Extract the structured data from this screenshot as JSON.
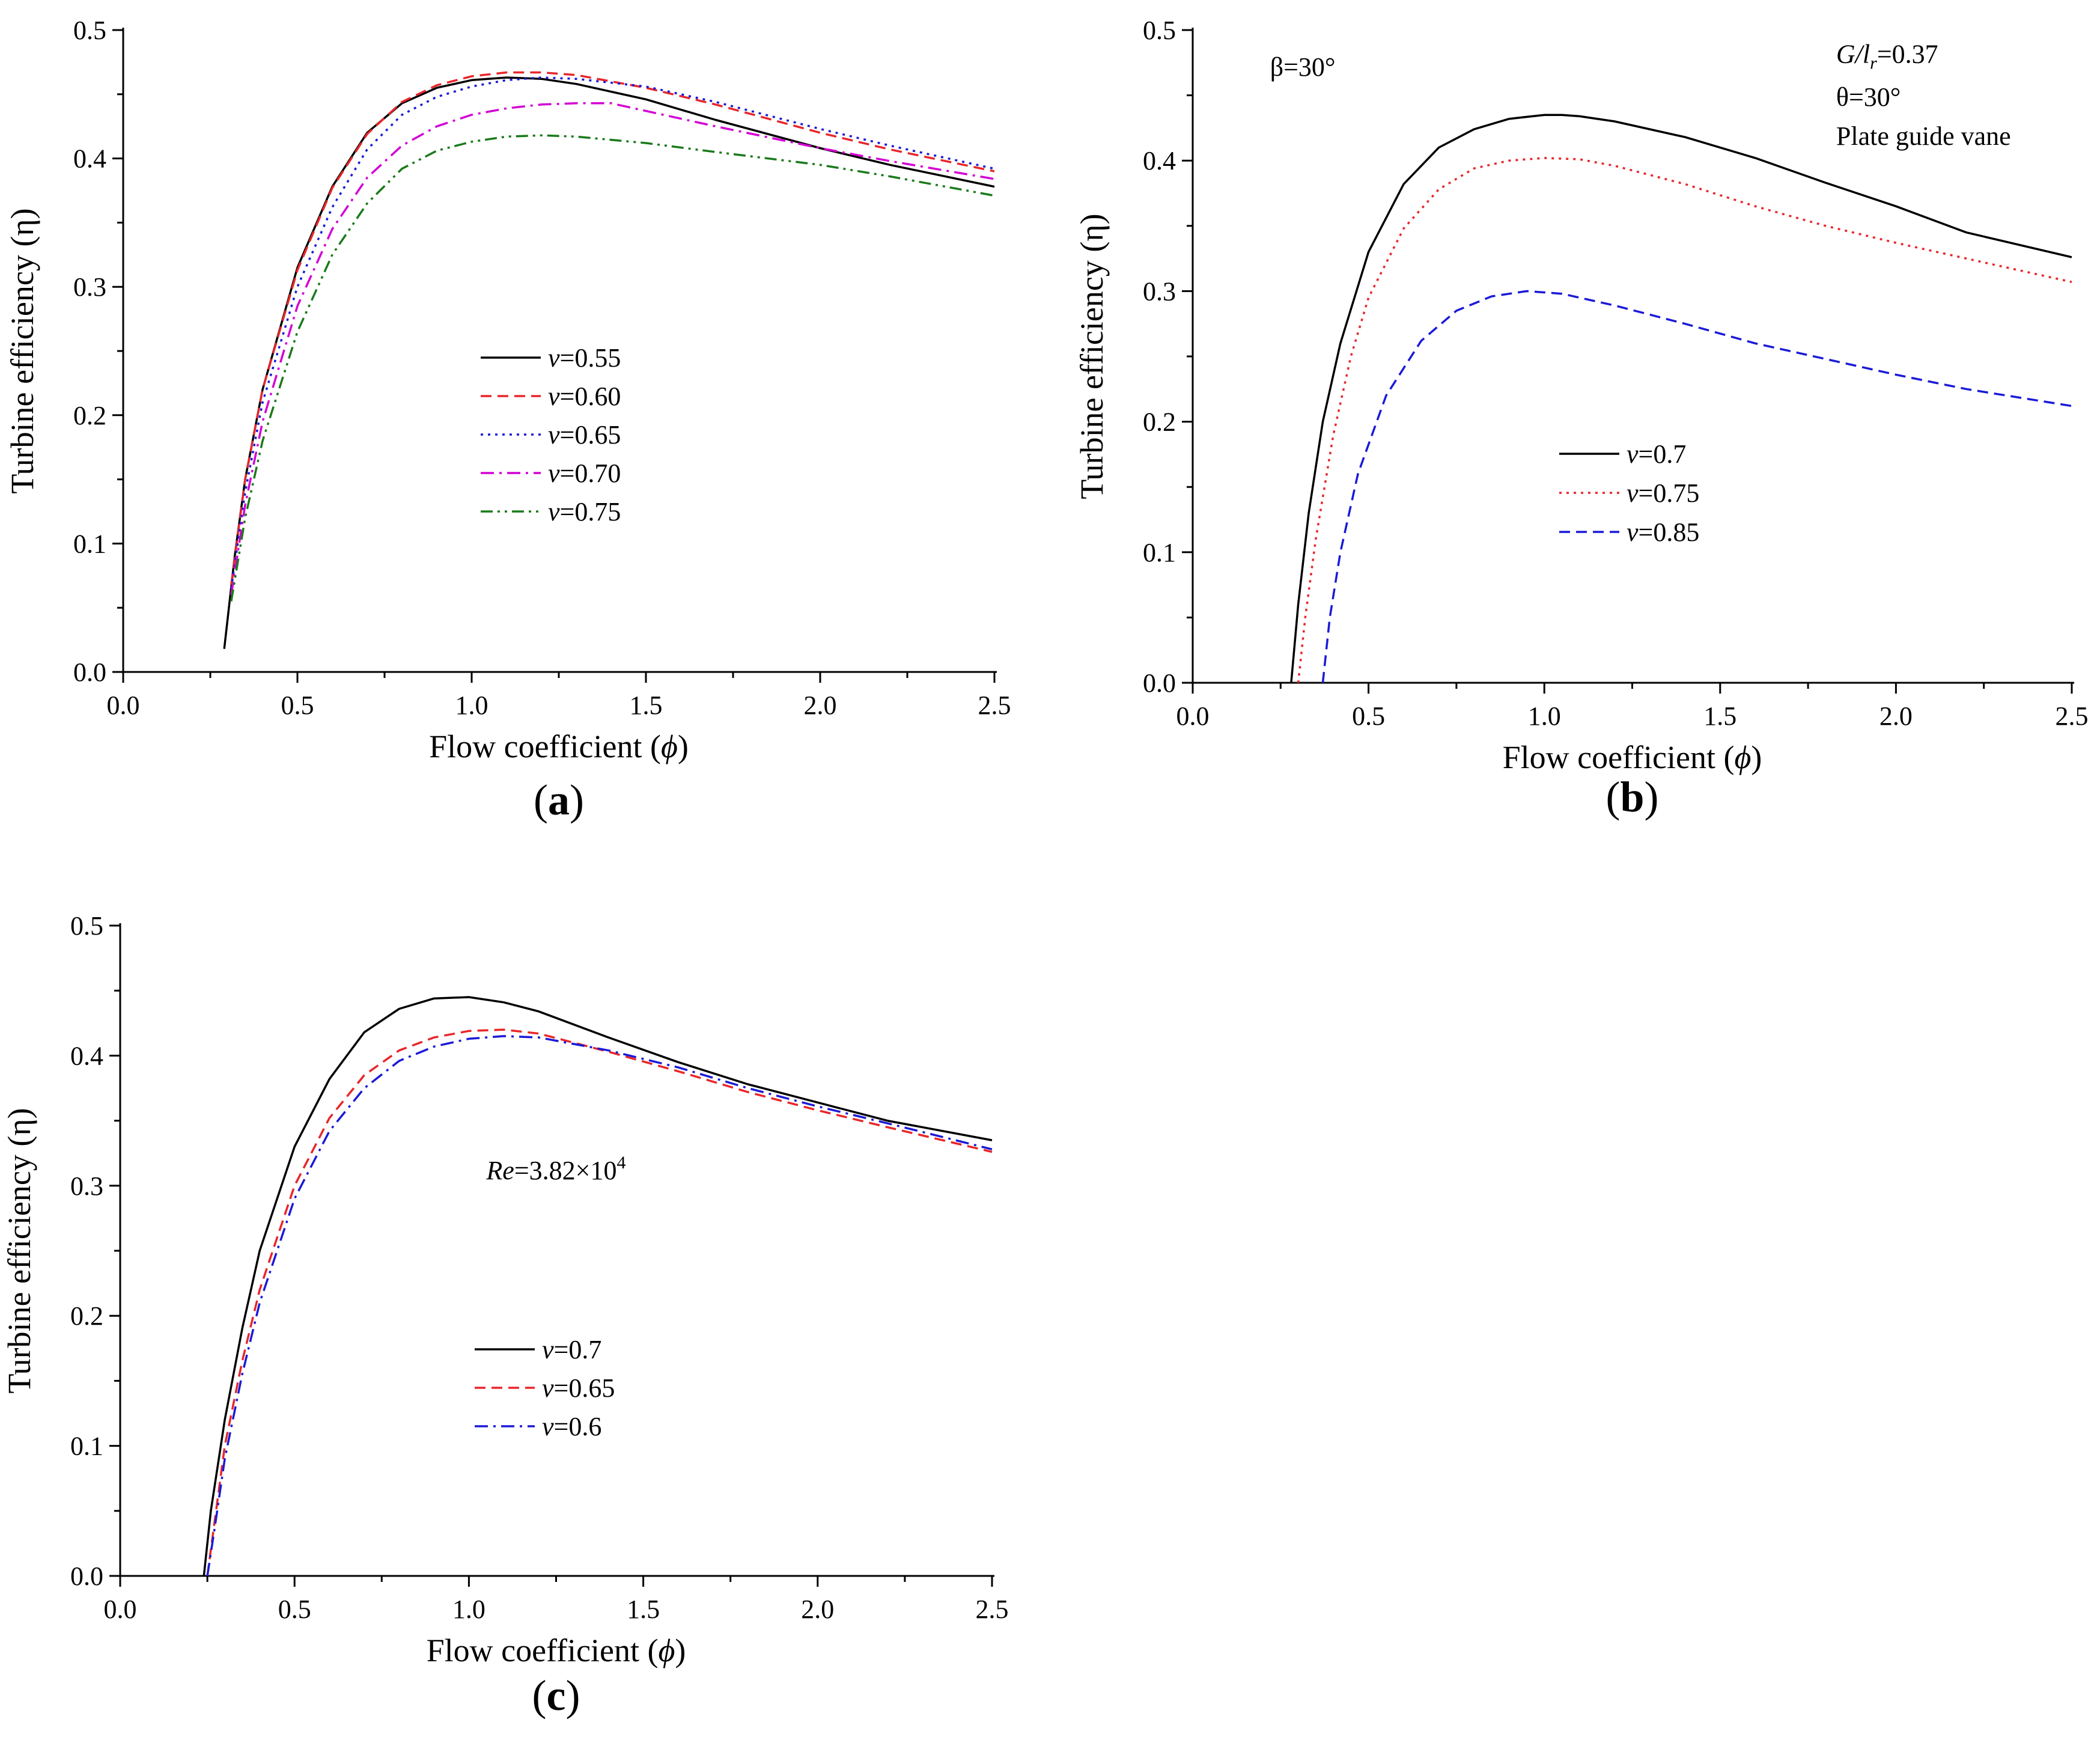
{
  "chart_data": [
    {
      "id": "a",
      "type": "line",
      "panel_label": "a",
      "xlabel": "Flow coefficient (ϕ)",
      "xlabel_parts": {
        "text": "Flow coefficient (",
        "symbol": "ϕ",
        "close": ")"
      },
      "ylabel": "Turbine efficiency (η)",
      "xlim": [
        0,
        2.5
      ],
      "ylim": [
        0,
        0.5
      ],
      "xticks": [
        "0.0",
        "0.5",
        "1.0",
        "1.5",
        "2.0",
        "2.5"
      ],
      "yticks": [
        "0.0",
        "0.1",
        "0.2",
        "0.3",
        "0.4",
        "0.5"
      ],
      "annotations": [],
      "legend_position": "center",
      "series": [
        {
          "name": "v=0.55",
          "symbol": "v",
          "value_label": "=0.55",
          "color": "#000000",
          "dash": "solid",
          "x": [
            0.29,
            0.32,
            0.35,
            0.4,
            0.5,
            0.6,
            0.7,
            0.8,
            0.9,
            1.0,
            1.1,
            1.2,
            1.3,
            1.5,
            1.7,
            2.0,
            2.2,
            2.5
          ],
          "y": [
            0.018,
            0.09,
            0.15,
            0.22,
            0.315,
            0.378,
            0.42,
            0.443,
            0.455,
            0.461,
            0.463,
            0.462,
            0.458,
            0.446,
            0.43,
            0.408,
            0.395,
            0.378
          ]
        },
        {
          "name": "v=0.60",
          "symbol": "v",
          "value_label": "=0.60",
          "color": "#e8262a",
          "dash": "dashed",
          "x": [
            0.31,
            0.35,
            0.4,
            0.5,
            0.6,
            0.7,
            0.8,
            0.9,
            1.0,
            1.1,
            1.2,
            1.3,
            1.5,
            1.7,
            2.0,
            2.2,
            2.5
          ],
          "y": [
            0.068,
            0.15,
            0.22,
            0.313,
            0.377,
            0.419,
            0.444,
            0.457,
            0.464,
            0.467,
            0.467,
            0.465,
            0.455,
            0.442,
            0.42,
            0.407,
            0.39
          ]
        },
        {
          "name": "v=0.65",
          "symbol": "v",
          "value_label": "=0.65",
          "color": "#1a1ad8",
          "dash": "dotted",
          "x": [
            0.31,
            0.35,
            0.4,
            0.5,
            0.6,
            0.7,
            0.8,
            0.9,
            1.0,
            1.1,
            1.2,
            1.3,
            1.5,
            1.7,
            2.0,
            2.2,
            2.5
          ],
          "y": [
            0.065,
            0.14,
            0.21,
            0.3,
            0.362,
            0.407,
            0.434,
            0.448,
            0.456,
            0.461,
            0.463,
            0.462,
            0.456,
            0.444,
            0.423,
            0.41,
            0.392
          ]
        },
        {
          "name": "v=0.70",
          "symbol": "v",
          "value_label": "=0.70",
          "color": "#d400d4",
          "dash": "dashdot",
          "x": [
            0.31,
            0.35,
            0.4,
            0.5,
            0.6,
            0.7,
            0.8,
            0.9,
            1.0,
            1.1,
            1.2,
            1.3,
            1.4,
            1.5,
            1.7,
            2.0,
            2.2,
            2.5
          ],
          "y": [
            0.06,
            0.13,
            0.195,
            0.285,
            0.345,
            0.385,
            0.41,
            0.425,
            0.434,
            0.439,
            0.442,
            0.443,
            0.443,
            0.437,
            0.425,
            0.408,
            0.398,
            0.384
          ]
        },
        {
          "name": "v=0.75",
          "symbol": "v",
          "value_label": "=0.75",
          "color": "#1a7a1a",
          "dash": "dashdotdot",
          "x": [
            0.31,
            0.35,
            0.4,
            0.5,
            0.6,
            0.7,
            0.8,
            0.9,
            1.0,
            1.1,
            1.2,
            1.3,
            1.5,
            1.7,
            2.0,
            2.2,
            2.5
          ],
          "y": [
            0.055,
            0.12,
            0.18,
            0.265,
            0.325,
            0.365,
            0.392,
            0.406,
            0.413,
            0.417,
            0.418,
            0.417,
            0.412,
            0.405,
            0.395,
            0.386,
            0.371
          ]
        }
      ]
    },
    {
      "id": "b",
      "type": "line",
      "panel_label": "b",
      "xlabel": "Flow coefficient (ϕ)",
      "xlabel_parts": {
        "text": "Flow coefficient (",
        "symbol": "ϕ",
        "close": ")"
      },
      "ylabel": "Turbine efficiency (η)",
      "xlim": [
        0,
        2.5
      ],
      "ylim": [
        0,
        0.5
      ],
      "xticks": [
        "0.0",
        "0.5",
        "1.0",
        "1.5",
        "2.0",
        "2.5"
      ],
      "yticks": [
        "0.0",
        "0.1",
        "0.2",
        "0.3",
        "0.4",
        "0.5"
      ],
      "annotations": [
        {
          "text": "β=30°",
          "x": 0.22,
          "y": 0.465,
          "anchor": "start"
        },
        {
          "text": "G/lr=0.37",
          "x": 1.83,
          "y": 0.475,
          "anchor": "start",
          "rich": "G-over-lr"
        },
        {
          "text": "θ=30°",
          "x": 1.83,
          "y": 0.442,
          "anchor": "start"
        },
        {
          "text": "Plate guide vane",
          "x": 1.83,
          "y": 0.412,
          "anchor": "start"
        }
      ],
      "legend_position": "center",
      "series": [
        {
          "name": "v=0.7",
          "symbol": "v",
          "value_label": "=0.7",
          "color": "#000000",
          "dash": "solid",
          "x": [
            0.28,
            0.3,
            0.33,
            0.37,
            0.42,
            0.5,
            0.6,
            0.7,
            0.8,
            0.9,
            1.0,
            1.05,
            1.1,
            1.2,
            1.4,
            1.6,
            1.8,
            2.0,
            2.2,
            2.5
          ],
          "y": [
            0.0,
            0.06,
            0.13,
            0.2,
            0.26,
            0.33,
            0.382,
            0.41,
            0.424,
            0.432,
            0.435,
            0.435,
            0.434,
            0.43,
            0.418,
            0.402,
            0.383,
            0.365,
            0.345,
            0.326
          ]
        },
        {
          "name": "v=0.75",
          "symbol": "v",
          "value_label": "=0.75",
          "color": "#e8262a",
          "dash": "dotted",
          "x": [
            0.3,
            0.32,
            0.35,
            0.4,
            0.45,
            0.5,
            0.6,
            0.7,
            0.8,
            0.9,
            1.0,
            1.1,
            1.2,
            1.4,
            1.6,
            1.8,
            2.0,
            2.2,
            2.5
          ],
          "y": [
            0.0,
            0.05,
            0.11,
            0.19,
            0.25,
            0.295,
            0.348,
            0.378,
            0.394,
            0.4,
            0.402,
            0.401,
            0.396,
            0.382,
            0.365,
            0.35,
            0.337,
            0.325,
            0.307
          ]
        },
        {
          "name": "v=0.85",
          "symbol": "v",
          "value_label": "=0.85",
          "color": "#1a1ad8",
          "dash": "dashed",
          "x": [
            0.37,
            0.39,
            0.42,
            0.47,
            0.55,
            0.65,
            0.75,
            0.85,
            0.95,
            1.05,
            1.2,
            1.4,
            1.6,
            1.8,
            2.0,
            2.2,
            2.5
          ],
          "y": [
            0.0,
            0.05,
            0.1,
            0.16,
            0.22,
            0.262,
            0.285,
            0.296,
            0.3,
            0.298,
            0.289,
            0.275,
            0.26,
            0.248,
            0.236,
            0.225,
            0.212
          ]
        }
      ]
    },
    {
      "id": "c",
      "type": "line",
      "panel_label": "c",
      "xlabel": "Flow coefficient (ϕ)",
      "xlabel_parts": {
        "text": "Flow coefficient (",
        "symbol": "ϕ",
        "close": ")"
      },
      "ylabel": "Turbine efficiency (η)",
      "xlim": [
        0,
        2.5
      ],
      "ylim": [
        0,
        0.5
      ],
      "xticks": [
        "0.0",
        "0.5",
        "1.0",
        "1.5",
        "2.0",
        "2.5"
      ],
      "yticks": [
        "0.0",
        "0.1",
        "0.2",
        "0.3",
        "0.4",
        "0.5"
      ],
      "annotations": [
        {
          "text": "Re=3.82×10⁴",
          "x": 1.05,
          "y": 0.305,
          "anchor": "start",
          "rich": "reynolds"
        }
      ],
      "legend_position": "center-left",
      "series": [
        {
          "name": "v=0.7",
          "symbol": "v",
          "value_label": "=0.7",
          "color": "#000000",
          "dash": "solid",
          "x": [
            0.24,
            0.26,
            0.3,
            0.35,
            0.4,
            0.5,
            0.6,
            0.7,
            0.8,
            0.9,
            1.0,
            1.1,
            1.2,
            1.4,
            1.6,
            1.8,
            2.0,
            2.2,
            2.5
          ],
          "y": [
            0.0,
            0.05,
            0.12,
            0.19,
            0.25,
            0.33,
            0.382,
            0.418,
            0.436,
            0.444,
            0.445,
            0.441,
            0.434,
            0.414,
            0.395,
            0.378,
            0.364,
            0.35,
            0.335
          ]
        },
        {
          "name": "v=0.65",
          "symbol": "v",
          "value_label": "=0.65",
          "color": "#e8262a",
          "dash": "dashed",
          "x": [
            0.25,
            0.27,
            0.3,
            0.35,
            0.4,
            0.5,
            0.6,
            0.7,
            0.8,
            0.9,
            1.0,
            1.1,
            1.2,
            1.4,
            1.6,
            1.8,
            2.0,
            2.2,
            2.5
          ],
          "y": [
            0.0,
            0.04,
            0.1,
            0.165,
            0.22,
            0.3,
            0.352,
            0.385,
            0.404,
            0.414,
            0.419,
            0.42,
            0.417,
            0.403,
            0.388,
            0.372,
            0.358,
            0.345,
            0.326
          ]
        },
        {
          "name": "v=0.6",
          "symbol": "v",
          "value_label": "=0.6",
          "color": "#1a1ad8",
          "dash": "dashdot",
          "x": [
            0.25,
            0.27,
            0.3,
            0.35,
            0.4,
            0.5,
            0.6,
            0.7,
            0.8,
            0.9,
            1.0,
            1.1,
            1.2,
            1.4,
            1.6,
            1.8,
            2.0,
            2.2,
            2.5
          ],
          "y": [
            0.0,
            0.035,
            0.09,
            0.155,
            0.21,
            0.29,
            0.342,
            0.375,
            0.396,
            0.407,
            0.413,
            0.415,
            0.414,
            0.404,
            0.391,
            0.375,
            0.361,
            0.348,
            0.328
          ]
        }
      ]
    }
  ]
}
